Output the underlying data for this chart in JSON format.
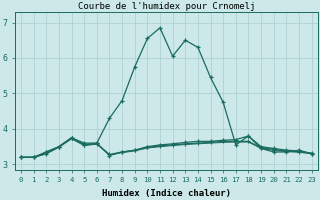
{
  "title": "Courbe de l'humidex pour Crnomelj",
  "xlabel": "Humidex (Indice chaleur)",
  "bg_color": "#cce8e8",
  "line_color": "#1a6b60",
  "grid_color": "#aacece",
  "xlim": [
    -0.5,
    23.5
  ],
  "ylim": [
    2.85,
    7.3
  ],
  "yticks": [
    3,
    4,
    5,
    6,
    7
  ],
  "xticks": [
    0,
    1,
    2,
    3,
    4,
    5,
    6,
    7,
    8,
    9,
    10,
    11,
    12,
    13,
    14,
    15,
    16,
    17,
    18,
    19,
    20,
    21,
    22,
    23
  ],
  "series1": [
    3.2,
    3.2,
    3.3,
    3.5,
    3.75,
    3.6,
    3.6,
    4.3,
    4.8,
    5.75,
    6.55,
    6.85,
    6.05,
    6.5,
    6.3,
    5.45,
    4.75,
    3.55,
    3.8,
    3.45,
    3.35,
    3.35,
    3.4,
    3.3
  ],
  "series2": [
    3.2,
    3.2,
    3.35,
    3.5,
    3.75,
    3.55,
    3.6,
    3.25,
    3.35,
    3.4,
    3.5,
    3.55,
    3.58,
    3.62,
    3.65,
    3.65,
    3.68,
    3.7,
    3.8,
    3.5,
    3.45,
    3.4,
    3.38,
    3.3
  ],
  "series3": [
    3.2,
    3.2,
    3.35,
    3.5,
    3.75,
    3.55,
    3.58,
    3.28,
    3.35,
    3.4,
    3.48,
    3.52,
    3.55,
    3.58,
    3.6,
    3.62,
    3.65,
    3.65,
    3.65,
    3.47,
    3.42,
    3.38,
    3.36,
    3.32
  ],
  "series4": [
    3.2,
    3.2,
    3.3,
    3.48,
    3.72,
    3.53,
    3.57,
    3.27,
    3.33,
    3.38,
    3.46,
    3.5,
    3.53,
    3.56,
    3.58,
    3.6,
    3.62,
    3.63,
    3.63,
    3.45,
    3.4,
    3.36,
    3.34,
    3.3
  ]
}
